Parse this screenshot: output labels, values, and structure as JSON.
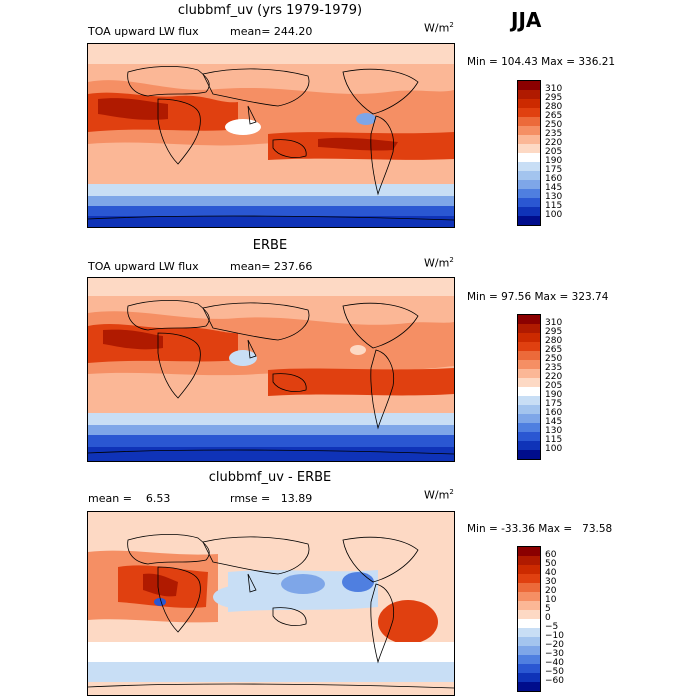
{
  "season": "JJA",
  "chart_data": [
    {
      "type": "heatmap",
      "title": "clubbmf_uv (yrs 1979-1979)",
      "left_label": "TOA upward LW flux",
      "stat_label": "mean= 244.20",
      "unit": "W/m",
      "unit_exp": "2",
      "minmax": "Min = 104.43 Max = 336.21",
      "colorbar": {
        "levels": [
          "310",
          "295",
          "280",
          "265",
          "250",
          "235",
          "220",
          "205",
          "190",
          "175",
          "160",
          "145",
          "130",
          "115",
          "100"
        ],
        "colors": [
          "#8b0000",
          "#b01a00",
          "#cc2a00",
          "#e04010",
          "#ec6a3a",
          "#f58f64",
          "#fbb796",
          "#fdd9c4",
          "#ffffff",
          "#c8def5",
          "#a3c4ee",
          "#7ea6e8",
          "#4f7fe0",
          "#2a57d2",
          "#0f33b8",
          "#000d8c"
        ]
      }
    },
    {
      "type": "heatmap",
      "title": "ERBE",
      "left_label": "TOA upward LW flux",
      "stat_label": "mean= 237.66",
      "unit": "W/m",
      "unit_exp": "2",
      "minmax": "Min =  97.56 Max = 323.74",
      "colorbar": {
        "levels": [
          "310",
          "295",
          "280",
          "265",
          "250",
          "235",
          "220",
          "205",
          "190",
          "175",
          "160",
          "145",
          "130",
          "115",
          "100"
        ],
        "colors": [
          "#8b0000",
          "#b01a00",
          "#cc2a00",
          "#e04010",
          "#ec6a3a",
          "#f58f64",
          "#fbb796",
          "#fdd9c4",
          "#ffffff",
          "#c8def5",
          "#a3c4ee",
          "#7ea6e8",
          "#4f7fe0",
          "#2a57d2",
          "#0f33b8",
          "#000d8c"
        ]
      }
    },
    {
      "type": "heatmap",
      "title": "clubbmf_uv - ERBE",
      "left_label": "mean =    6.53",
      "stat_label": "rmse =   13.89",
      "unit": "W/m",
      "unit_exp": "2",
      "minmax": "Min = -33.36 Max =   73.58",
      "colorbar": {
        "levels": [
          "60",
          "50",
          "40",
          "30",
          "20",
          "10",
          "5",
          "0",
          "−5",
          "−10",
          "−20",
          "−30",
          "−40",
          "−50",
          "−60"
        ],
        "colors": [
          "#8b0000",
          "#b01a00",
          "#cc2a00",
          "#e04010",
          "#ec6a3a",
          "#f58f64",
          "#fbb796",
          "#fdd9c4",
          "#ffffff",
          "#c8def5",
          "#a3c4ee",
          "#7ea6e8",
          "#4f7fe0",
          "#2a57d2",
          "#0f33b8",
          "#000d8c"
        ]
      }
    }
  ]
}
